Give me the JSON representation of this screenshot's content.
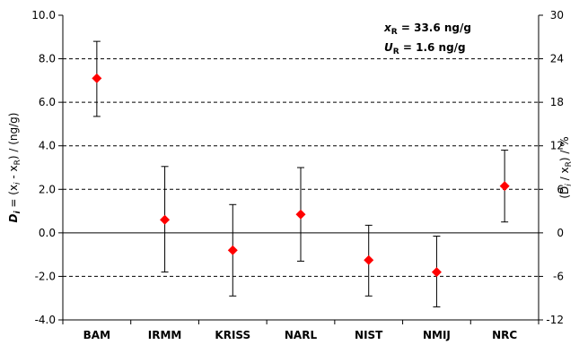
{
  "chart_data": {
    "type": "scatter",
    "categories": [
      "BAM",
      "IRMM",
      "KRISS",
      "NARL",
      "NIST",
      "NMIJ",
      "NRC"
    ],
    "values": [
      7.1,
      0.6,
      -0.8,
      0.85,
      -1.25,
      -1.8,
      2.15
    ],
    "error_low": [
      5.35,
      -1.8,
      -2.9,
      -1.3,
      -2.9,
      -3.4,
      0.5
    ],
    "error_high": [
      8.8,
      3.05,
      1.3,
      3.0,
      0.35,
      -0.15,
      3.8
    ],
    "ylim": [
      -4.0,
      10.0
    ],
    "yticks": [
      "-4.0",
      "-2.0",
      "0.0",
      "2.0",
      "4.0",
      "6.0",
      "8.0",
      "10.0"
    ],
    "y2lim": [
      -12,
      30
    ],
    "y2ticks": [
      "-12",
      "-6",
      "0",
      "6",
      "12",
      "18",
      "24",
      "30"
    ],
    "grid": "horizontal-dashed",
    "marker_color": "#ff0000",
    "ylabel": {
      "prefix": "D",
      "sub": "i",
      "mid": " = (x",
      "x_sub": "i",
      "rest": " - x",
      "r_sub": "R",
      "suffix": ") / (ng/g)"
    },
    "y2label": {
      "prefix": "(D",
      "sub": "i",
      "mid": " / x",
      "r_sub": "R",
      "suffix": ") / %"
    },
    "annotations": {
      "xr_label": "x",
      "xr_sub": "R",
      "xr_value": " = 33.6 ng/g",
      "ur_label": "U",
      "ur_sub": "R",
      "ur_value": " = 1.6 ng/g"
    }
  }
}
